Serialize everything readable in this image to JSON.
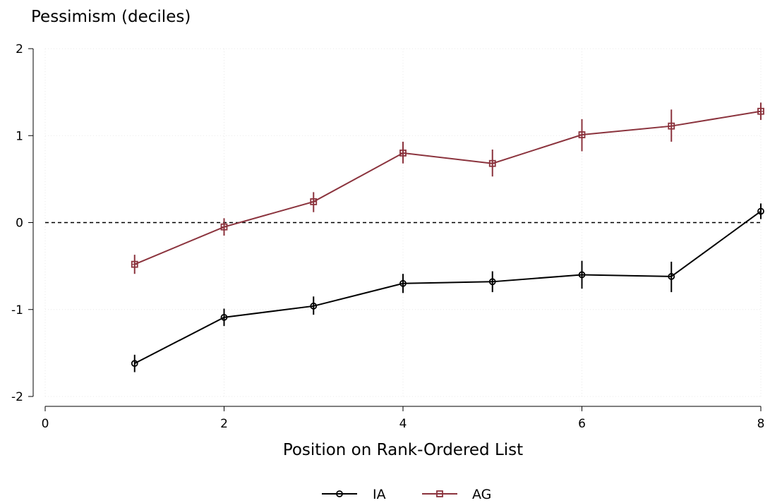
{
  "chart_data": {
    "type": "line",
    "title": "",
    "ylabel": "Pessimism (deciles)",
    "xlabel": "Position on Rank-Ordered List",
    "xlim": [
      0,
      8
    ],
    "ylim": [
      -2,
      2
    ],
    "x_ticks": [
      0,
      2,
      4,
      6,
      8
    ],
    "y_ticks": [
      -2,
      -1,
      0,
      1,
      2
    ],
    "x_tick_labels": [
      "0",
      "2",
      "4",
      "6",
      "8"
    ],
    "y_tick_labels": [
      "-2",
      "-1",
      "0",
      "1",
      "2"
    ],
    "grid": true,
    "reference_line": {
      "y": 0,
      "style": "dashed"
    },
    "legend_placement": "bottom-center",
    "series": [
      {
        "name": "IA",
        "color": "#000000",
        "marker": "circle",
        "x": [
          1,
          2,
          3,
          4,
          5,
          6,
          7,
          8
        ],
        "y": [
          -1.62,
          -1.09,
          -0.96,
          -0.7,
          -0.68,
          -0.6,
          -0.62,
          0.13
        ],
        "ci_low": [
          -1.72,
          -1.19,
          -1.06,
          -0.81,
          -0.8,
          -0.76,
          -0.8,
          0.04
        ],
        "ci_high": [
          -1.52,
          -0.99,
          -0.85,
          -0.59,
          -0.56,
          -0.44,
          -0.45,
          0.22
        ]
      },
      {
        "name": "AG",
        "color": "#8b333d",
        "marker": "square",
        "x": [
          1,
          2,
          3,
          4,
          5,
          6,
          7,
          8
        ],
        "y": [
          -0.48,
          -0.05,
          0.24,
          0.8,
          0.68,
          1.01,
          1.11,
          1.28
        ],
        "ci_low": [
          -0.59,
          -0.15,
          0.12,
          0.68,
          0.53,
          0.82,
          0.93,
          1.18
        ],
        "ci_high": [
          -0.37,
          0.05,
          0.35,
          0.93,
          0.84,
          1.19,
          1.3,
          1.38
        ]
      }
    ]
  }
}
